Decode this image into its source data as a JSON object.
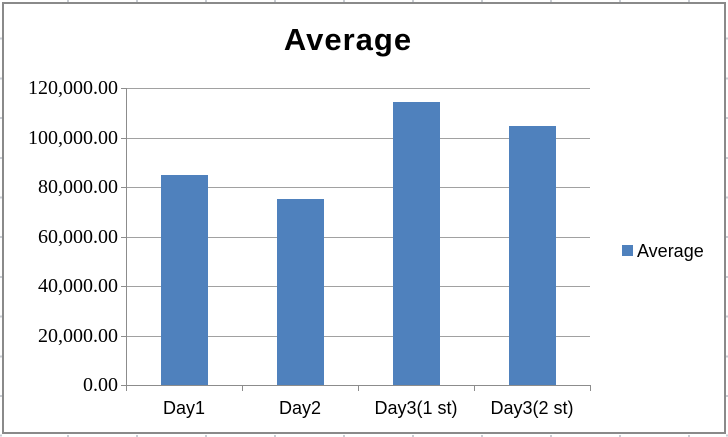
{
  "chart_data": {
    "type": "bar",
    "title": "Average",
    "categories": [
      "Day1",
      "Day2",
      "Day3(1 st)",
      "Day3(2 st)"
    ],
    "series": [
      {
        "name": "Average",
        "values": [
          84800,
          75200,
          114300,
          104600
        ]
      }
    ],
    "xlabel": "",
    "ylabel": "",
    "ylim": [
      0,
      120000
    ],
    "ytick_step": 20000,
    "ytick_labels": [
      "120,000.00",
      "100,000.00",
      "80,000.00",
      "60,000.00",
      "40,000.00",
      "20,000.00",
      "0.00"
    ],
    "grid": true,
    "legend": {
      "position": "right",
      "entries": [
        "Average"
      ]
    },
    "colors": {
      "bar": "#4f81bd",
      "gridline": "#a1a1a1",
      "axis": "#8c8c8c",
      "chart_border": "#8a8a8a",
      "sheet_gridline": "#c9cdd3",
      "text": "#000000"
    }
  }
}
